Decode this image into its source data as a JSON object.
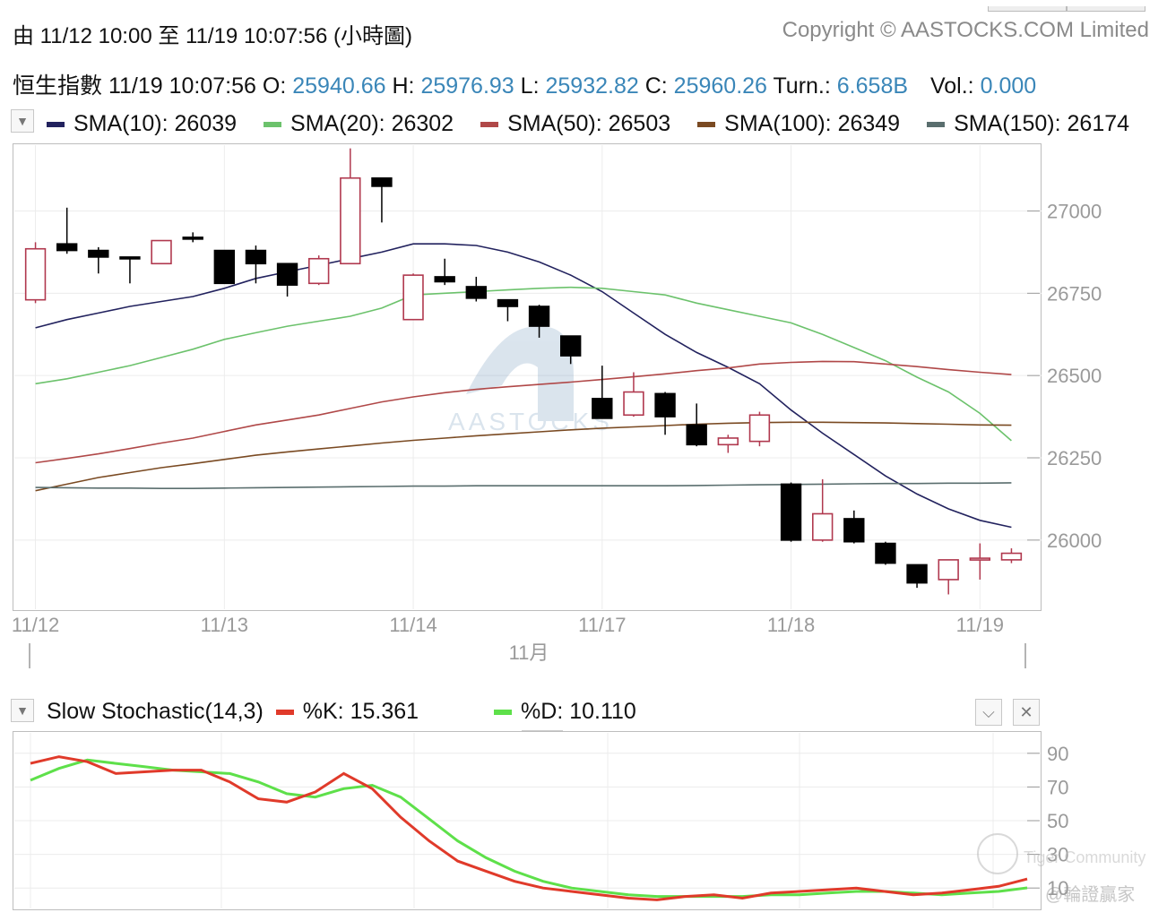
{
  "header": {
    "range_label": "由  11/12 10:00 至  11/19 10:07:56 (小時圖)",
    "copyright": "Copyright © AASTOCKS.COM Limited"
  },
  "quote": {
    "name": "恒生指數",
    "time": "11/19 10:07:56",
    "o_label": "O:",
    "o": "25940.66",
    "h_label": "H:",
    "h": "25976.93",
    "l_label": "L:",
    "l": "25932.82",
    "c_label": "C:",
    "c": "25960.26",
    "turn_label": "Turn.:",
    "turn": "6.658B",
    "vol_label": "Vol.:",
    "vol": "0.000"
  },
  "legend": [
    {
      "label": "SMA(10): 26039",
      "color": "#22225e"
    },
    {
      "label": "SMA(20): 26302",
      "color": "#6cc26c"
    },
    {
      "label": "SMA(50): 26503",
      "color": "#b04848"
    },
    {
      "label": "SMA(100): 26349",
      "color": "#7a4a22"
    },
    {
      "label": "SMA(150): 26174",
      "color": "#5a6e6e"
    }
  ],
  "watermark": {
    "brand": "AASTOCKS",
    "community": "Tiger Community",
    "author": "@輪證贏家"
  },
  "stoch_legend": {
    "title": "Slow Stochastic(14,3)",
    "k_label": "%K: 15.361",
    "d_label": "%D: 10.110",
    "k_color": "#e03a2a",
    "d_color": "#5ee04a"
  },
  "colors": {
    "up": "#b0384e",
    "down": "#000000",
    "axis": "#9a9a9a",
    "value_text": "#3a86b8"
  },
  "chart_data": [
    {
      "type": "candlestick",
      "y_ticks": [
        27000,
        26750,
        26500,
        26250,
        26000
      ],
      "ylim": [
        25790,
        27200
      ],
      "x_tick_labels": [
        {
          "index": 0,
          "label": "11/12"
        },
        {
          "index": 6,
          "label": "11/13"
        },
        {
          "index": 12,
          "label": "11/14"
        },
        {
          "index": 18,
          "label": "11/17"
        },
        {
          "index": 24,
          "label": "11/18"
        },
        {
          "index": 30,
          "label": "11/19"
        }
      ],
      "month_label": "11月",
      "candles": [
        {
          "o": 26730,
          "h": 26905,
          "l": 26720,
          "c": 26885
        },
        {
          "o": 26900,
          "h": 27010,
          "l": 26870,
          "c": 26880
        },
        {
          "o": 26880,
          "h": 26890,
          "l": 26810,
          "c": 26860
        },
        {
          "o": 26860,
          "h": 26860,
          "l": 26780,
          "c": 26855
        },
        {
          "o": 26840,
          "h": 26910,
          "l": 26840,
          "c": 26910
        },
        {
          "o": 26920,
          "h": 26935,
          "l": 26905,
          "c": 26915
        },
        {
          "o": 26880,
          "h": 26880,
          "l": 26780,
          "c": 26780
        },
        {
          "o": 26880,
          "h": 26895,
          "l": 26780,
          "c": 26840
        },
        {
          "o": 26840,
          "h": 26840,
          "l": 26740,
          "c": 26775
        },
        {
          "o": 26780,
          "h": 26865,
          "l": 26775,
          "c": 26855
        },
        {
          "o": 26840,
          "h": 27190,
          "l": 26840,
          "c": 27100
        },
        {
          "o": 27100,
          "h": 27100,
          "l": 26965,
          "c": 27075
        },
        {
          "o": 26670,
          "h": 26810,
          "l": 26670,
          "c": 26805
        },
        {
          "o": 26800,
          "h": 26855,
          "l": 26775,
          "c": 26785
        },
        {
          "o": 26770,
          "h": 26800,
          "l": 26725,
          "c": 26735
        },
        {
          "o": 26730,
          "h": 26730,
          "l": 26665,
          "c": 26710
        },
        {
          "o": 26710,
          "h": 26715,
          "l": 26615,
          "c": 26650
        },
        {
          "o": 26620,
          "h": 26620,
          "l": 26535,
          "c": 26560
        },
        {
          "o": 26430,
          "h": 26530,
          "l": 26380,
          "c": 26370
        },
        {
          "o": 26380,
          "h": 26510,
          "l": 26375,
          "c": 26450
        },
        {
          "o": 26445,
          "h": 26450,
          "l": 26320,
          "c": 26375
        },
        {
          "o": 26350,
          "h": 26415,
          "l": 26285,
          "c": 26290
        },
        {
          "o": 26290,
          "h": 26320,
          "l": 26265,
          "c": 26310
        },
        {
          "o": 26300,
          "h": 26390,
          "l": 26285,
          "c": 26380
        },
        {
          "o": 26170,
          "h": 26175,
          "l": 25995,
          "c": 26000
        },
        {
          "o": 26000,
          "h": 26185,
          "l": 25995,
          "c": 26080
        },
        {
          "o": 26065,
          "h": 26090,
          "l": 25990,
          "c": 25995
        },
        {
          "o": 25990,
          "h": 25995,
          "l": 25925,
          "c": 25930
        },
        {
          "o": 25925,
          "h": 25925,
          "l": 25855,
          "c": 25870
        },
        {
          "o": 25880,
          "h": 25940,
          "l": 25835,
          "c": 25940
        },
        {
          "o": 25945,
          "h": 25990,
          "l": 25880,
          "c": 25945
        },
        {
          "o": 25940,
          "h": 25975,
          "l": 25930,
          "c": 25960
        }
      ],
      "series": [
        {
          "name": "SMA(10)",
          "color": "#22225e",
          "values": [
            26645,
            26670,
            26690,
            26710,
            26725,
            26740,
            26765,
            26795,
            26815,
            26835,
            26855,
            26875,
            26900,
            26900,
            26895,
            26875,
            26845,
            26805,
            26755,
            26690,
            26625,
            26570,
            26525,
            26475,
            26395,
            26325,
            26260,
            26195,
            26140,
            26095,
            26060,
            26039
          ]
        },
        {
          "name": "SMA(20)",
          "color": "#6cc26c",
          "values": [
            26475,
            26490,
            26510,
            26530,
            26555,
            26580,
            26610,
            26630,
            26650,
            26665,
            26680,
            26705,
            26745,
            26750,
            26755,
            26760,
            26765,
            26768,
            26765,
            26755,
            26745,
            26720,
            26700,
            26680,
            26660,
            26625,
            26585,
            26545,
            26495,
            26450,
            26385,
            26302
          ]
        },
        {
          "name": "SMA(50)",
          "color": "#b04848",
          "values": [
            26235,
            26248,
            26262,
            26278,
            26295,
            26310,
            26330,
            26350,
            26365,
            26380,
            26400,
            26420,
            26435,
            26448,
            26458,
            26466,
            26473,
            26480,
            26488,
            26496,
            26505,
            26515,
            26523,
            26535,
            26540,
            26543,
            26542,
            26535,
            26527,
            26518,
            26510,
            26503
          ]
        },
        {
          "name": "SMA(100)",
          "color": "#7a4a22",
          "values": [
            26150,
            26170,
            26190,
            26205,
            26220,
            26232,
            26245,
            26258,
            26268,
            26277,
            26286,
            26295,
            26303,
            26310,
            26317,
            26323,
            26329,
            26335,
            26340,
            26344,
            26348,
            26352,
            26355,
            26357,
            26358,
            26358,
            26357,
            26356,
            26354,
            26352,
            26350,
            26349
          ]
        },
        {
          "name": "SMA(150)",
          "color": "#5a6e6e",
          "values": [
            26160,
            26159,
            26158,
            26158,
            26157,
            26157,
            26158,
            26159,
            26160,
            26161,
            26162,
            26163,
            26164,
            26164,
            26165,
            26165,
            26165,
            26165,
            26165,
            26165,
            26165,
            26166,
            26167,
            26168,
            26169,
            26170,
            26171,
            26172,
            26172,
            26173,
            26173,
            26174
          ]
        }
      ]
    },
    {
      "type": "line",
      "title": "Slow Stochastic(14,3)",
      "y_ticks": [
        90,
        70,
        50,
        30,
        10
      ],
      "ylim": [
        0,
        100
      ],
      "series": [
        {
          "name": "%K",
          "color": "#e03a2a",
          "values": [
            84,
            88,
            85,
            78,
            79,
            80,
            80,
            73,
            63,
            61,
            67,
            78,
            69,
            52,
            38,
            26,
            20,
            14,
            10,
            8,
            6,
            4,
            3,
            5,
            6,
            4,
            7,
            8,
            9,
            10,
            8,
            6,
            7,
            9,
            11,
            15.361
          ]
        },
        {
          "name": "%D",
          "color": "#5ee04a",
          "values": [
            74,
            81,
            86,
            84,
            82,
            80,
            79,
            78,
            73,
            66,
            64,
            69,
            71,
            64,
            51,
            38,
            28,
            20,
            14,
            10,
            8,
            6,
            5,
            5,
            5,
            5,
            6,
            6,
            7,
            8,
            8,
            7,
            6,
            7,
            8,
            10.11
          ]
        }
      ]
    }
  ]
}
